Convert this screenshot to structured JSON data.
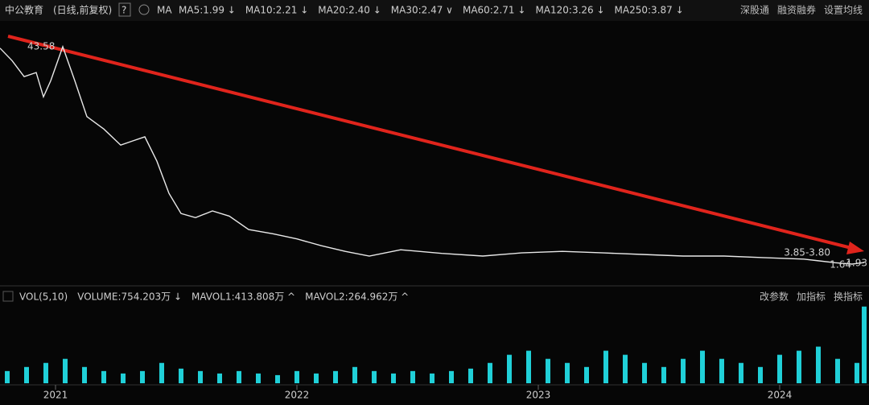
{
  "header": {
    "title": "中公教育",
    "mode": "(日线,前复权)",
    "help": "?",
    "ma": "MA",
    "ma_labels": [
      {
        "text": "MA5:1.99 ↓",
        "color": "#e6e6e6"
      },
      {
        "text": "MA10:2.21 ↓",
        "color": "#f0e04a"
      },
      {
        "text": "MA20:2.40 ↓",
        "color": "#e040e0"
      },
      {
        "text": "MA30:2.47 ∨",
        "color": "#40e040"
      },
      {
        "text": "MA60:2.71 ↓",
        "color": "#d8d8d8"
      },
      {
        "text": "MA120:3.26 ↓",
        "color": "#30d0e0"
      },
      {
        "text": "MA250:3.87 ↓",
        "color": "#f0e08a"
      }
    ],
    "buttons": [
      "深股通",
      "融资融券",
      "设置均线"
    ]
  },
  "volume_header": {
    "labels": [
      {
        "text": "VOL(5,10)",
        "color": "#cfcfcf"
      },
      {
        "text": "VOLUME:754.203万 ↓",
        "color": "#ffffff"
      },
      {
        "text": "MAVOL1:413.808万 ^",
        "color": "#f0e04a"
      },
      {
        "text": "MAVOL2:264.962万 ^",
        "color": "#e040e0"
      }
    ],
    "buttons": [
      "改参数",
      "加指标",
      "换指标"
    ]
  },
  "chart_data": [
    {
      "type": "line",
      "color": "#e8e8e8",
      "x": [
        2020.77,
        2020.82,
        2020.87,
        2020.92,
        2020.95,
        2020.98,
        2021.03,
        2021.08,
        2021.13,
        2021.2,
        2021.27,
        2021.32,
        2021.37,
        2021.42,
        2021.47,
        2021.52,
        2021.58,
        2021.65,
        2021.72,
        2021.8,
        2021.9,
        2022.0,
        2022.1,
        2022.2,
        2022.3,
        2022.43,
        2022.6,
        2022.77,
        2022.93,
        2023.1,
        2023.27,
        2023.43,
        2023.6,
        2023.77,
        2023.93,
        2024.1,
        2024.23,
        2024.3,
        2024.35
      ],
      "values": [
        43.3,
        40.9,
        37.8,
        38.6,
        33.9,
        37.0,
        43.58,
        37.0,
        30.1,
        27.7,
        24.6,
        25.4,
        26.2,
        21.5,
        15.3,
        11.4,
        10.6,
        11.9,
        10.9,
        8.3,
        7.5,
        6.5,
        5.2,
        4.1,
        3.2,
        4.4,
        3.7,
        3.2,
        3.8,
        4.1,
        3.8,
        3.5,
        3.2,
        3.2,
        2.9,
        2.6,
        1.9,
        1.64,
        1.93
      ],
      "xlim": [
        2020.77,
        2024.37
      ],
      "ylim": [
        -1,
        45.6
      ],
      "xticks": [
        2021,
        2022,
        2023,
        2024
      ],
      "annotations": [
        "43.58",
        "3.85-3.80",
        "1.64",
        "1.93"
      ]
    },
    {
      "type": "bar",
      "color": "#20d0d8",
      "x": [
        2020.8,
        2020.88,
        2020.96,
        2021.04,
        2021.12,
        2021.2,
        2021.28,
        2021.36,
        2021.44,
        2021.52,
        2021.6,
        2021.68,
        2021.76,
        2021.84,
        2021.92,
        2022.0,
        2022.08,
        2022.16,
        2022.24,
        2022.32,
        2022.4,
        2022.48,
        2022.56,
        2022.64,
        2022.72,
        2022.8,
        2022.88,
        2022.96,
        2023.04,
        2023.12,
        2023.2,
        2023.28,
        2023.36,
        2023.44,
        2023.52,
        2023.6,
        2023.68,
        2023.76,
        2023.84,
        2023.92,
        2024.0,
        2024.08,
        2024.16,
        2024.24,
        2024.32,
        2024.35
      ],
      "values": [
        120,
        160,
        200,
        240,
        160,
        120,
        96,
        120,
        200,
        144,
        120,
        96,
        120,
        96,
        80,
        120,
        96,
        120,
        160,
        120,
        96,
        120,
        96,
        120,
        144,
        200,
        280,
        320,
        240,
        200,
        160,
        320,
        280,
        200,
        160,
        240,
        320,
        240,
        200,
        160,
        280,
        320,
        360,
        240,
        200,
        754.203
      ],
      "xlim": [
        2020.77,
        2024.37
      ],
      "ylim": [
        0,
        760
      ]
    }
  ]
}
